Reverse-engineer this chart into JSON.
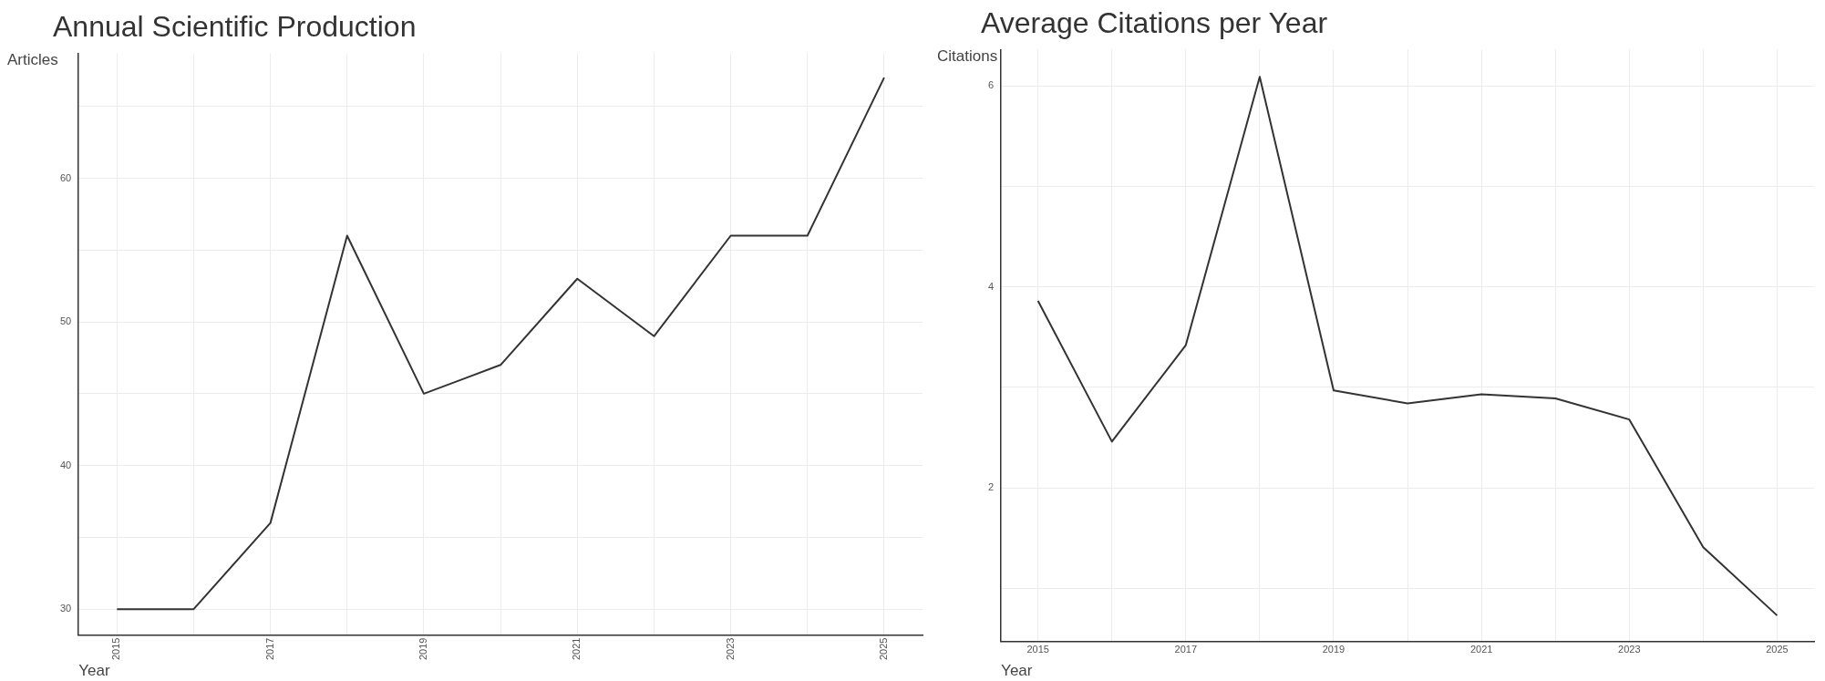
{
  "chart_data": [
    {
      "type": "line",
      "title": "Annual Scientific Production",
      "xlabel": "Year",
      "ylabel": "Articles",
      "x": [
        2015,
        2016,
        2017,
        2018,
        2019,
        2020,
        2021,
        2022,
        2023,
        2024,
        2025
      ],
      "series": [
        {
          "color": "#333333",
          "values": [
            30,
            30,
            36,
            56,
            45,
            47,
            53,
            49,
            56,
            56,
            67
          ]
        }
      ],
      "xlim": [
        2014.5,
        2025.5
      ],
      "ylim": [
        28.2,
        68.7
      ],
      "xticks": [
        2015,
        {
          "value": 2016,
          "label": null
        },
        2017,
        {
          "value": 2018,
          "label": null
        },
        2019,
        {
          "value": 2020,
          "label": null
        },
        2021,
        {
          "value": 2022,
          "label": null
        },
        2023,
        {
          "value": 2024,
          "label": null
        },
        2025
      ],
      "yticks": [
        30,
        {
          "value": 35,
          "label": null
        },
        40,
        {
          "value": 45,
          "label": null
        },
        50,
        {
          "value": 55,
          "label": null
        },
        60,
        {
          "value": 65,
          "label": null
        }
      ],
      "grid": true,
      "legend": false,
      "marker": "none",
      "line_style": "solid"
    },
    {
      "type": "line",
      "title": "Average Citations per Year",
      "xlabel": "Year",
      "ylabel": "Citations",
      "x": [
        2015,
        2016,
        2017,
        2018,
        2019,
        2020,
        2021,
        2022,
        2023,
        2024,
        2025
      ],
      "series": [
        {
          "color": "#333333",
          "values": [
            3.86,
            2.46,
            3.42,
            6.09,
            2.97,
            2.84,
            2.93,
            2.89,
            2.68,
            1.41,
            0.73
          ]
        }
      ],
      "xlim": [
        2014.5,
        2025.5
      ],
      "ylim": [
        0.47,
        6.36
      ],
      "xticks": [
        2015,
        {
          "value": 2016,
          "label": null
        },
        2017,
        {
          "value": 2018,
          "label": null
        },
        2019,
        {
          "value": 2020,
          "label": null
        },
        2021,
        {
          "value": 2022,
          "label": null
        },
        2023,
        {
          "value": 2024,
          "label": null
        },
        2025
      ],
      "yticks": [
        {
          "value": 1,
          "label": null
        },
        2,
        {
          "value": 3,
          "label": null
        },
        4,
        {
          "value": 5,
          "label": null
        },
        6
      ],
      "grid": true,
      "legend": false,
      "marker": "none",
      "line_style": "solid"
    }
  ]
}
